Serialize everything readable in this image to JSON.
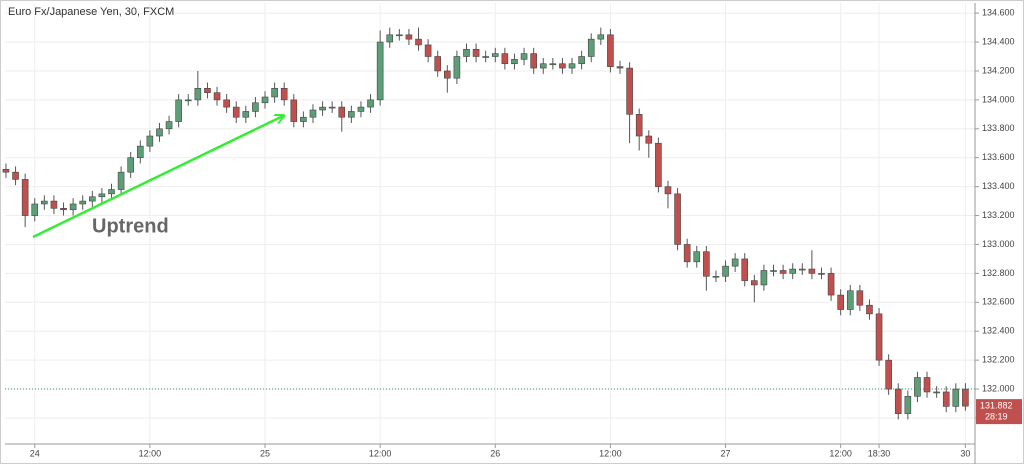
{
  "chart_data": {
    "type": "candlestick",
    "title": "Euro Fx/Japanese Yen, 30, FXCM",
    "annotation": "Uptrend",
    "countdown": "28:19",
    "up_color": "#5d9e76",
    "down_color": "#c0504d",
    "ref_line": 132,
    "ref_color": "#3a9a6a",
    "grid": true,
    "categories": [
      null,
      null,
      null,
      "24",
      null,
      null,
      null,
      null,
      null,
      null,
      null,
      null,
      null,
      null,
      null,
      "12:00",
      null,
      null,
      null,
      null,
      null,
      null,
      null,
      null,
      null,
      null,
      null,
      "25",
      null,
      null,
      null,
      null,
      null,
      null,
      null,
      null,
      null,
      null,
      null,
      "12:00",
      null,
      null,
      null,
      null,
      null,
      null,
      null,
      null,
      null,
      null,
      null,
      "26",
      null,
      null,
      null,
      null,
      null,
      null,
      null,
      null,
      null,
      null,
      null,
      "12:00",
      null,
      null,
      null,
      null,
      null,
      null,
      null,
      null,
      null,
      null,
      null,
      "27",
      null,
      null,
      null,
      null,
      null,
      null,
      null,
      null,
      null,
      null,
      null,
      "12:00",
      null,
      null,
      null,
      "18:30",
      null,
      null,
      null,
      null,
      null,
      null,
      null,
      null,
      "30"
    ],
    "open": [
      133.52,
      133.5,
      133.45,
      133.2,
      133.28,
      133.3,
      133.25,
      133.24,
      133.28,
      133.3,
      133.33,
      133.35,
      133.38,
      133.5,
      133.6,
      133.68,
      133.75,
      133.8,
      133.85,
      134.0,
      134.0,
      134.08,
      134.05,
      134.0,
      133.95,
      133.88,
      133.92,
      133.98,
      134.02,
      134.08,
      134.0,
      133.85,
      133.88,
      133.93,
      133.95,
      133.95,
      133.88,
      133.92,
      133.95,
      134.0,
      134.4,
      134.45,
      134.45,
      134.42,
      134.38,
      134.3,
      134.2,
      134.15,
      134.3,
      134.35,
      134.3,
      134.3,
      134.32,
      134.25,
      134.28,
      134.32,
      134.22,
      134.25,
      134.25,
      134.22,
      134.25,
      134.3,
      134.42,
      134.45,
      134.23,
      134.22,
      133.9,
      133.75,
      133.7,
      133.4,
      133.35,
      133.0,
      132.88,
      132.95,
      132.78,
      132.78,
      132.85,
      132.9,
      132.75,
      132.72,
      132.82,
      132.82,
      132.8,
      132.83,
      132.83,
      132.8,
      132.8,
      132.65,
      132.55,
      132.68,
      132.58,
      132.52,
      132.2,
      132.0,
      131.83,
      131.95,
      132.08,
      131.98,
      131.98,
      131.88,
      132.0
    ],
    "high": [
      133.56,
      133.54,
      133.49,
      133.32,
      133.34,
      133.34,
      133.29,
      133.32,
      133.34,
      133.37,
      133.39,
      133.42,
      133.54,
      133.64,
      133.72,
      133.79,
      133.84,
      133.89,
      134.04,
      134.04,
      134.2,
      134.12,
      134.09,
      134.04,
      133.99,
      133.96,
      134.02,
      134.06,
      134.12,
      134.12,
      134.04,
      133.92,
      133.97,
      133.99,
      133.99,
      133.99,
      133.96,
      133.99,
      134.04,
      134.48,
      134.5,
      134.49,
      134.49,
      134.5,
      134.42,
      134.34,
      134.24,
      134.34,
      134.39,
      134.39,
      134.34,
      134.36,
      134.36,
      134.32,
      134.36,
      134.36,
      134.29,
      134.29,
      134.29,
      134.29,
      134.34,
      134.46,
      134.5,
      134.49,
      134.27,
      134.26,
      133.94,
      133.79,
      133.74,
      133.44,
      133.39,
      133.04,
      132.99,
      132.99,
      132.82,
      132.89,
      132.94,
      132.94,
      132.79,
      132.86,
      132.86,
      132.86,
      132.87,
      132.87,
      132.96,
      132.84,
      132.84,
      132.69,
      132.72,
      132.72,
      132.62,
      132.56,
      132.24,
      132.04,
      131.99,
      132.12,
      132.12,
      132.02,
      132.02,
      132.04,
      132.04
    ],
    "low": [
      133.46,
      133.41,
      133.12,
      133.16,
      133.24,
      133.21,
      133.2,
      133.2,
      133.24,
      133.26,
      133.29,
      133.31,
      133.34,
      133.46,
      133.56,
      133.64,
      133.71,
      133.76,
      133.81,
      133.96,
      133.96,
      134.01,
      133.96,
      133.91,
      133.84,
      133.84,
      133.88,
      133.94,
      133.98,
      133.96,
      133.81,
      133.81,
      133.84,
      133.89,
      133.91,
      133.78,
      133.84,
      133.88,
      133.91,
      133.96,
      134.36,
      134.41,
      134.38,
      134.34,
      134.26,
      134.16,
      134.05,
      134.11,
      134.26,
      134.26,
      134.26,
      134.26,
      134.21,
      134.21,
      134.24,
      134.18,
      134.18,
      134.21,
      134.18,
      134.18,
      134.21,
      134.26,
      134.38,
      134.19,
      134.18,
      133.7,
      133.65,
      133.6,
      133.36,
      133.25,
      132.96,
      132.84,
      132.84,
      132.68,
      132.74,
      132.74,
      132.81,
      132.71,
      132.6,
      132.68,
      132.78,
      132.76,
      132.76,
      132.79,
      132.76,
      132.76,
      132.61,
      132.51,
      132.51,
      132.54,
      132.48,
      132.16,
      131.96,
      131.79,
      131.79,
      131.91,
      131.94,
      131.94,
      131.84,
      131.84,
      131.85
    ],
    "close": [
      133.5,
      133.45,
      133.2,
      133.28,
      133.3,
      133.25,
      133.24,
      133.28,
      133.3,
      133.33,
      133.35,
      133.38,
      133.5,
      133.6,
      133.68,
      133.75,
      133.8,
      133.85,
      134.0,
      134.0,
      134.08,
      134.05,
      134.0,
      133.95,
      133.88,
      133.92,
      133.98,
      134.02,
      134.08,
      134.0,
      133.85,
      133.88,
      133.93,
      133.95,
      133.95,
      133.88,
      133.92,
      133.95,
      134.0,
      134.4,
      134.45,
      134.45,
      134.42,
      134.38,
      134.3,
      134.2,
      134.15,
      134.3,
      134.35,
      134.3,
      134.3,
      134.32,
      134.25,
      134.28,
      134.32,
      134.22,
      134.25,
      134.25,
      134.22,
      134.25,
      134.3,
      134.42,
      134.45,
      134.23,
      134.22,
      133.9,
      133.75,
      133.7,
      133.4,
      133.35,
      133.0,
      132.88,
      132.95,
      132.78,
      132.78,
      132.85,
      132.9,
      132.75,
      132.72,
      132.82,
      132.82,
      132.8,
      132.83,
      132.83,
      132.8,
      132.8,
      132.65,
      132.55,
      132.68,
      132.58,
      132.52,
      132.2,
      132.0,
      131.83,
      131.95,
      132.08,
      131.98,
      131.98,
      131.88,
      132.0,
      131.882
    ],
    "ylim": [
      131.62,
      134.67
    ],
    "yticks": [
      {
        "value": 131.8,
        "label": "131.800"
      },
      {
        "value": 132,
        "label": "132.000"
      },
      {
        "value": 132.2,
        "label": "132.200"
      },
      {
        "value": 132.4,
        "label": "132.400"
      },
      {
        "value": 132.6,
        "label": "132.600"
      },
      {
        "value": 132.8,
        "label": "132.800"
      },
      {
        "value": 133,
        "label": "133.000"
      },
      {
        "value": 133.2,
        "label": "133.200"
      },
      {
        "value": 133.4,
        "label": "133.400"
      },
      {
        "value": 133.6,
        "label": "133.600"
      },
      {
        "value": 133.8,
        "label": "133.800"
      },
      {
        "value": 134,
        "label": "134.000"
      },
      {
        "value": 134.2,
        "label": "134.200"
      },
      {
        "value": 134.4,
        "label": "134.400"
      },
      {
        "value": 134.6,
        "label": "134.600"
      }
    ]
  }
}
